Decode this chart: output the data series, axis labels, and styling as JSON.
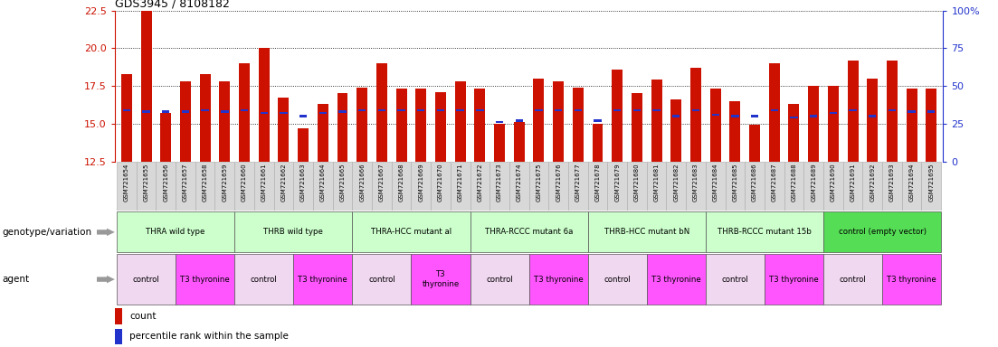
{
  "title": "GDS3945 / 8108182",
  "samples": [
    "GSM721654",
    "GSM721655",
    "GSM721656",
    "GSM721657",
    "GSM721658",
    "GSM721659",
    "GSM721660",
    "GSM721661",
    "GSM721662",
    "GSM721663",
    "GSM721664",
    "GSM721665",
    "GSM721666",
    "GSM721667",
    "GSM721668",
    "GSM721669",
    "GSM721670",
    "GSM721671",
    "GSM721672",
    "GSM721673",
    "GSM721674",
    "GSM721675",
    "GSM721676",
    "GSM721677",
    "GSM721678",
    "GSM721679",
    "GSM721680",
    "GSM721681",
    "GSM721682",
    "GSM721683",
    "GSM721684",
    "GSM721685",
    "GSM721686",
    "GSM721687",
    "GSM721688",
    "GSM721689",
    "GSM721690",
    "GSM721691",
    "GSM721692",
    "GSM721693",
    "GSM721694",
    "GSM721695"
  ],
  "bar_values": [
    18.3,
    22.5,
    15.7,
    17.8,
    18.3,
    17.8,
    19.0,
    20.0,
    16.7,
    14.7,
    16.3,
    17.0,
    17.4,
    19.0,
    17.3,
    17.3,
    17.1,
    17.8,
    17.3,
    15.0,
    15.1,
    18.0,
    17.8,
    17.4,
    15.0,
    18.6,
    17.0,
    17.9,
    16.6,
    18.7,
    17.3,
    16.5,
    14.9,
    19.0,
    16.3,
    17.5,
    17.5,
    19.2,
    18.0,
    19.2,
    17.3,
    17.3
  ],
  "percentile_values": [
    15.9,
    15.8,
    15.8,
    15.8,
    15.9,
    15.8,
    15.9,
    15.7,
    15.7,
    15.5,
    15.7,
    15.8,
    15.9,
    15.9,
    15.9,
    15.9,
    15.9,
    15.9,
    15.9,
    15.1,
    15.2,
    15.9,
    15.9,
    15.9,
    15.2,
    15.9,
    15.9,
    15.9,
    15.5,
    15.9,
    15.6,
    15.5,
    15.5,
    15.9,
    15.4,
    15.5,
    15.7,
    15.9,
    15.5,
    15.9,
    15.8,
    15.8
  ],
  "ymin": 12.5,
  "ymax": 22.5,
  "yticks_left": [
    12.5,
    15.0,
    17.5,
    20.0,
    22.5
  ],
  "yticks_right": [
    0,
    25,
    50,
    75,
    100
  ],
  "yticklabels_right": [
    "0",
    "25",
    "50",
    "75",
    "100%"
  ],
  "bar_color": "#cc1100",
  "percentile_color": "#2233cc",
  "bar_width": 0.55,
  "genotype_groups": [
    {
      "label": "THRA wild type",
      "start": 0,
      "end": 5,
      "color": "#ccffcc"
    },
    {
      "label": "THRB wild type",
      "start": 6,
      "end": 11,
      "color": "#ccffcc"
    },
    {
      "label": "THRA-HCC mutant al",
      "start": 12,
      "end": 17,
      "color": "#ccffcc"
    },
    {
      "label": "THRA-RCCC mutant 6a",
      "start": 18,
      "end": 23,
      "color": "#ccffcc"
    },
    {
      "label": "THRB-HCC mutant bN",
      "start": 24,
      "end": 29,
      "color": "#ccffcc"
    },
    {
      "label": "THRB-RCCC mutant 15b",
      "start": 30,
      "end": 35,
      "color": "#ccffcc"
    },
    {
      "label": "control (empty vector)",
      "start": 36,
      "end": 41,
      "color": "#55dd55"
    }
  ],
  "agent_groups": [
    {
      "label": "control",
      "start": 0,
      "end": 2,
      "color": "#f0d8f0"
    },
    {
      "label": "T3 thyronine",
      "start": 3,
      "end": 5,
      "color": "#ff55ff"
    },
    {
      "label": "control",
      "start": 6,
      "end": 8,
      "color": "#f0d8f0"
    },
    {
      "label": "T3 thyronine",
      "start": 9,
      "end": 11,
      "color": "#ff55ff"
    },
    {
      "label": "control",
      "start": 12,
      "end": 14,
      "color": "#f0d8f0"
    },
    {
      "label": "T3\nthyronine",
      "start": 15,
      "end": 17,
      "color": "#ff55ff"
    },
    {
      "label": "control",
      "start": 18,
      "end": 20,
      "color": "#f0d8f0"
    },
    {
      "label": "T3 thyronine",
      "start": 21,
      "end": 23,
      "color": "#ff55ff"
    },
    {
      "label": "control",
      "start": 24,
      "end": 26,
      "color": "#f0d8f0"
    },
    {
      "label": "T3 thyronine",
      "start": 27,
      "end": 29,
      "color": "#ff55ff"
    },
    {
      "label": "control",
      "start": 30,
      "end": 32,
      "color": "#f0d8f0"
    },
    {
      "label": "T3 thyronine",
      "start": 33,
      "end": 35,
      "color": "#ff55ff"
    },
    {
      "label": "control",
      "start": 36,
      "end": 38,
      "color": "#f0d8f0"
    },
    {
      "label": "T3 thyronine",
      "start": 39,
      "end": 41,
      "color": "#ff55ff"
    }
  ],
  "left_tick_color": "#cc1100",
  "right_tick_color": "#2233cc",
  "bg_color": "#ffffff",
  "genotype_label": "genotype/variation",
  "agent_label": "agent",
  "legend_count_label": "count",
  "legend_pct_label": "percentile rank within the sample",
  "arrow_color": "#999999"
}
